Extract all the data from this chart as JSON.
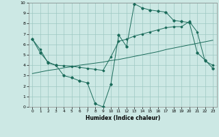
{
  "xlabel": "Humidex (Indice chaleur)",
  "xlim": [
    -0.5,
    23.5
  ],
  "ylim": [
    0,
    10
  ],
  "xticks": [
    0,
    1,
    2,
    3,
    4,
    5,
    6,
    7,
    8,
    9,
    10,
    11,
    12,
    13,
    14,
    15,
    16,
    17,
    18,
    19,
    20,
    21,
    22,
    23
  ],
  "yticks": [
    0,
    1,
    2,
    3,
    4,
    5,
    6,
    7,
    8,
    9,
    10
  ],
  "bg_color": "#cce8e4",
  "grid_color": "#9dc8c2",
  "line_color": "#1a6b5a",
  "series1_x": [
    0,
    1,
    2,
    3,
    4,
    5,
    6,
    7,
    8,
    9,
    10,
    11,
    12,
    13,
    14,
    15,
    16,
    17,
    18,
    19,
    20,
    21,
    22,
    23
  ],
  "series1_y": [
    6.5,
    5.2,
    4.3,
    4.0,
    3.0,
    2.8,
    2.5,
    2.3,
    0.3,
    0.0,
    2.2,
    6.9,
    5.8,
    9.9,
    9.5,
    9.3,
    9.2,
    9.1,
    8.3,
    8.2,
    8.1,
    5.2,
    4.5,
    3.7
  ],
  "series2_x": [
    0,
    1,
    2,
    3,
    4,
    5,
    6,
    7,
    8,
    9,
    10,
    11,
    12,
    13,
    14,
    15,
    16,
    17,
    18,
    19,
    20,
    21,
    22,
    23
  ],
  "series2_y": [
    3.2,
    3.35,
    3.5,
    3.6,
    3.75,
    3.85,
    4.0,
    4.1,
    4.2,
    4.3,
    4.45,
    4.55,
    4.7,
    4.85,
    5.0,
    5.15,
    5.3,
    5.5,
    5.65,
    5.8,
    5.95,
    6.1,
    6.25,
    6.4
  ],
  "series3_x": [
    0,
    1,
    2,
    3,
    4,
    5,
    6,
    7,
    8,
    9,
    10,
    11,
    12,
    13,
    14,
    15,
    16,
    17,
    18,
    19,
    20,
    21,
    22,
    23
  ],
  "series3_y": [
    6.5,
    5.5,
    4.2,
    4.0,
    3.95,
    3.9,
    3.8,
    3.7,
    3.6,
    3.5,
    4.8,
    6.3,
    6.5,
    6.8,
    7.0,
    7.2,
    7.4,
    7.6,
    7.7,
    7.7,
    8.2,
    7.2,
    4.4,
    4.0
  ]
}
